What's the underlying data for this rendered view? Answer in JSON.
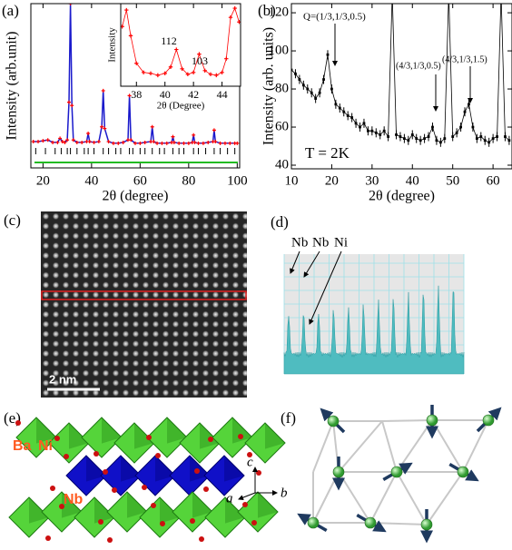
{
  "panel_labels": [
    "(a)",
    "(b)",
    "(c)",
    "(d)",
    "(e)",
    "(f)"
  ],
  "chart_data": [
    {
      "type": "scatter",
      "x": [
        16,
        18,
        20,
        22,
        24,
        26,
        27,
        28,
        29,
        30,
        30.7,
        31.3,
        31.9,
        32.5,
        34,
        36,
        38,
        38.6,
        39.2,
        41,
        43,
        44.2,
        44.8,
        45.4,
        47,
        49,
        51,
        53,
        55,
        55.6,
        56.2,
        58,
        60,
        62,
        64.4,
        65,
        65.6,
        67,
        69,
        71,
        73,
        73.5,
        74,
        76,
        78,
        80,
        81.5,
        82,
        82.5,
        84,
        86,
        88,
        90,
        90.5,
        91,
        93,
        95,
        97,
        99,
        100
      ],
      "values": [
        16,
        16,
        16.5,
        17,
        15.5,
        15.5,
        18,
        16,
        15.5,
        17,
        40,
        100,
        38,
        17,
        15.5,
        15.5,
        16,
        21,
        16,
        15.5,
        16,
        25,
        47,
        24,
        16,
        15,
        15,
        15.5,
        17,
        44,
        17,
        15,
        15,
        15.5,
        16,
        25,
        16,
        15,
        15,
        15,
        15.5,
        19,
        15.5,
        15,
        15,
        15,
        15.5,
        20,
        15.5,
        15,
        15,
        15.5,
        16,
        23,
        16,
        15,
        15,
        15,
        15,
        15
      ],
      "color": "#ff0000",
      "fit_color": "#1a1acc",
      "bragg_positions": [
        17,
        21,
        25,
        27.5,
        30,
        31.3,
        34,
        37,
        38.6,
        41,
        44.8,
        47,
        50,
        52,
        55.6,
        57,
        60,
        62,
        65,
        68,
        70,
        73.5,
        76,
        78,
        82,
        84,
        87,
        90.5,
        93,
        96,
        99
      ],
      "xlabel": "2θ (degree)",
      "ylabel": "Intensity (arb.unit)",
      "xlim": [
        15,
        101
      ],
      "ylim": [
        0,
        100
      ],
      "xticks": [
        20,
        40,
        60,
        80,
        100
      ]
    },
    {
      "type": "scatter",
      "x": [
        37,
        37.3,
        37.6,
        38,
        38.5,
        39,
        39.5,
        40,
        40.4,
        40.8,
        41.2,
        41.6,
        42,
        42.4,
        42.8,
        43.2,
        43.6,
        44,
        44.3,
        44.6,
        44.9,
        45.2
      ],
      "values": [
        80,
        98,
        70,
        40,
        30,
        29,
        27,
        29,
        36,
        55,
        34,
        28,
        30,
        50,
        32,
        28,
        27,
        30,
        45,
        90,
        100,
        85
      ],
      "color": "#ff0000",
      "xlabel": "2θ (Degree)",
      "ylabel": "Intensity",
      "xlim": [
        36.9,
        45.3
      ],
      "ylim": [
        15,
        105
      ],
      "xticks": [
        38,
        40,
        42,
        44
      ],
      "annotations": [
        "112",
        "103"
      ]
    },
    {
      "type": "scatter",
      "x": [
        10,
        11,
        12,
        13,
        14,
        15,
        16,
        17,
        18,
        19,
        20,
        21,
        22,
        23,
        24,
        25,
        26,
        27,
        28,
        29,
        30,
        31,
        32,
        33,
        34,
        35,
        36,
        37,
        38,
        39,
        40,
        41,
        42,
        43,
        44,
        45,
        46,
        47,
        48,
        49,
        50,
        51,
        52,
        53,
        54,
        55,
        56,
        57,
        58,
        59,
        60,
        61,
        62,
        63,
        64
      ],
      "values": [
        90,
        88,
        85,
        82,
        80,
        78,
        75,
        78,
        85,
        98,
        80,
        72,
        70,
        68,
        66,
        65,
        62,
        60,
        62,
        58,
        58,
        57,
        56,
        58,
        55,
        130,
        56,
        55,
        54,
        53,
        56,
        54,
        53,
        54,
        55,
        60,
        53,
        52,
        54,
        130,
        55,
        57,
        60,
        68,
        72,
        60,
        54,
        55,
        53,
        52,
        54,
        55,
        130,
        55,
        53
      ],
      "color": "#000000",
      "xlabel": "2θ (degree)",
      "ylabel": "Intensity (arb. units)",
      "xlim": [
        10,
        64.7
      ],
      "ylim": [
        38.1,
        124.8
      ],
      "xticks": [
        10,
        20,
        30,
        40,
        50,
        60
      ],
      "yticks": [
        40,
        60,
        80,
        100,
        120
      ],
      "annotations": [
        "Q=(1/3,1/3,0.5)",
        "(4/3,1/3,0.5)",
        "(4/3,1/3,1.5)",
        "T = 2K"
      ]
    }
  ],
  "panel_c": {
    "scale_bar": "2 nm"
  },
  "panel_d": {
    "labels": [
      "Nb",
      "Nb",
      "Ni"
    ]
  },
  "panel_e": {
    "labels": [
      "Ba",
      "Ni",
      "Nb"
    ],
    "axes": [
      "c",
      "a",
      "b"
    ]
  }
}
